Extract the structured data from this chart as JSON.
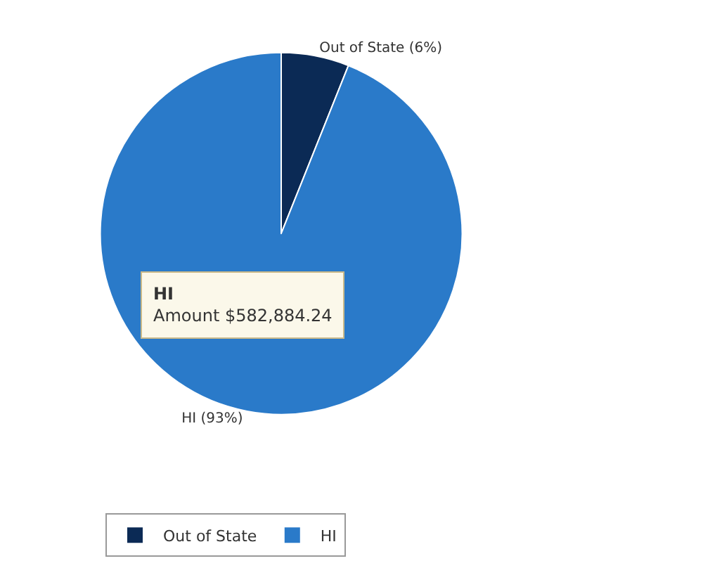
{
  "chart_data": {
    "type": "pie",
    "categories": [
      "Out of State",
      "HI"
    ],
    "values": [
      6,
      93
    ],
    "colors": [
      "#0b2a55",
      "#2a7ac9"
    ],
    "value_labels": [
      "Out of State (6%)",
      "HI (93%)"
    ],
    "annotations": [
      "HI",
      "Amount $582,884.24"
    ],
    "legend": "bottom"
  }
}
